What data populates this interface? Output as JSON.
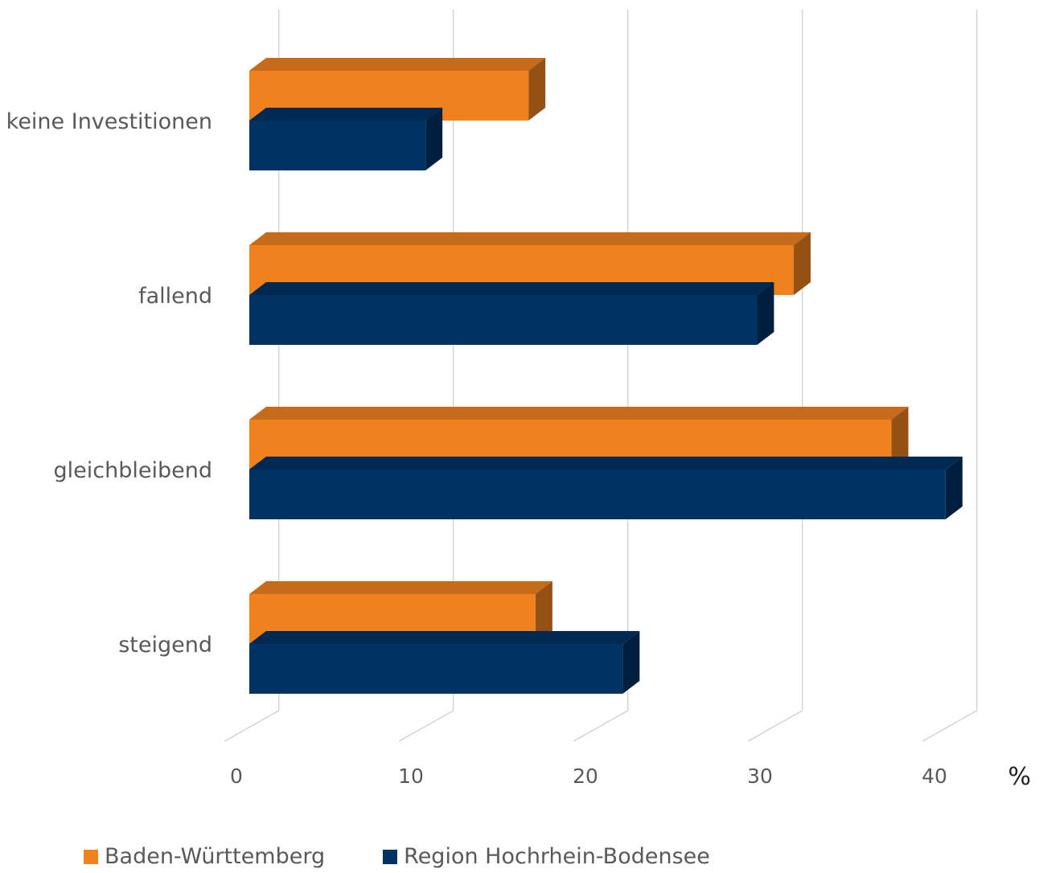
{
  "chart_data": {
    "type": "bar",
    "orientation": "horizontal",
    "style": "3d",
    "categories": [
      "keine Investitionen",
      "fallend",
      "gleichbleibend",
      "steigend"
    ],
    "series": [
      {
        "name": "Baden-Württemberg",
        "color": "#F0821E",
        "values": [
          16.0,
          31.2,
          36.8,
          16.4
        ]
      },
      {
        "name": "Region Hochrhein-Bodensee",
        "color": "#003264",
        "values": [
          10.1,
          29.1,
          39.9,
          21.4
        ]
      }
    ],
    "xticks": [
      "0",
      "10",
      "20",
      "30",
      "40"
    ],
    "xlim": [
      0,
      40
    ],
    "xunit": "%",
    "grid": true,
    "legend_position": "bottom-left"
  }
}
